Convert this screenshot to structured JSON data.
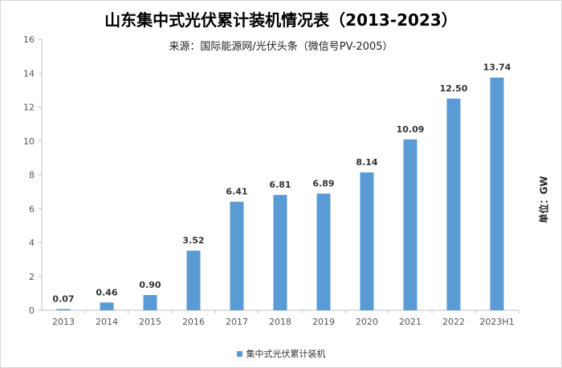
{
  "chart_data": {
    "type": "bar",
    "title": "山东集中式光伏累计装机情况表（2013-2023）",
    "subtitle": "来源：国际能源网/光伏头条（微信号PV-2005）",
    "ylabel": "单位：GW",
    "categories": [
      "2013",
      "2014",
      "2015",
      "2016",
      "2017",
      "2018",
      "2019",
      "2020",
      "2021",
      "2022",
      "2023H1"
    ],
    "series": [
      {
        "name": "集中式光伏累计装机",
        "values": [
          0.07,
          0.46,
          0.9,
          3.52,
          6.41,
          6.81,
          6.89,
          8.14,
          10.09,
          12.5,
          13.74
        ],
        "labels": [
          "0.07",
          "0.46",
          "0.90",
          "3.52",
          "6.41",
          "6.81",
          "6.89",
          "8.14",
          "10.09",
          "12.50",
          "13.74"
        ]
      }
    ],
    "ylim": [
      0,
      16
    ],
    "yticks": [
      0,
      2,
      4,
      6,
      8,
      10,
      12,
      14,
      16
    ],
    "grid": false,
    "legend_position": "bottom",
    "bar_color": "#5b9bd5"
  }
}
